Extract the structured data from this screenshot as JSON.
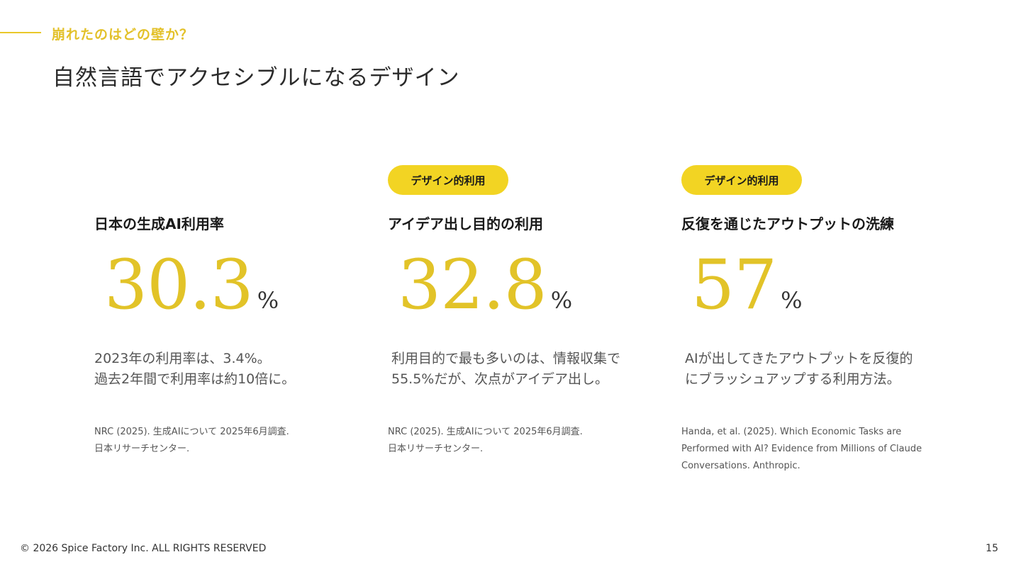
{
  "header": {
    "section_label": "崩れたのはどの壁か？",
    "title": "自然言語でアクセシブルになるデザイン"
  },
  "cards": [
    {
      "tag": "",
      "title": "日本の生成AI利用率",
      "value": "30.3",
      "unit": "%",
      "description": [
        "2023年の利用率は、3.4%。",
        "過去2年間で利用率は約10倍に。"
      ],
      "source": [
        "NRC (2025). 生成AIについて 2025年6月調査.",
        "日本リサーチセンター."
      ]
    },
    {
      "tag": "デザイン的利用",
      "title": "アイデア出し目的の利用",
      "value": "32.8",
      "unit": "%",
      "description": [
        "利用目的で最も多いのは、情報収集で",
        "55.5%だが、次点がアイデア出し。"
      ],
      "source": [
        "NRC (2025). 生成AIについて 2025年6月調査.",
        "日本リサーチセンター."
      ]
    },
    {
      "tag": "デザイン的利用",
      "title": "反復を通じたアウトプットの洗練",
      "value": "57",
      "unit": "%",
      "description": [
        "AIが出してきたアウトプットを反復的",
        "にブラッシュアップする利用方法。"
      ],
      "source": [
        "Handa, et al. (2025). Which Economic Tasks are",
        "Performed with AI? Evidence from Millions of Claude",
        "Conversations. Anthropic."
      ]
    }
  ],
  "footer": {
    "copyright": "© 2026  Spice Factory Inc. ALL RIGHTS RESERVED",
    "page_number": "15"
  },
  "colors": {
    "accent": "#f2d423",
    "accent_text": "#e2c328"
  }
}
